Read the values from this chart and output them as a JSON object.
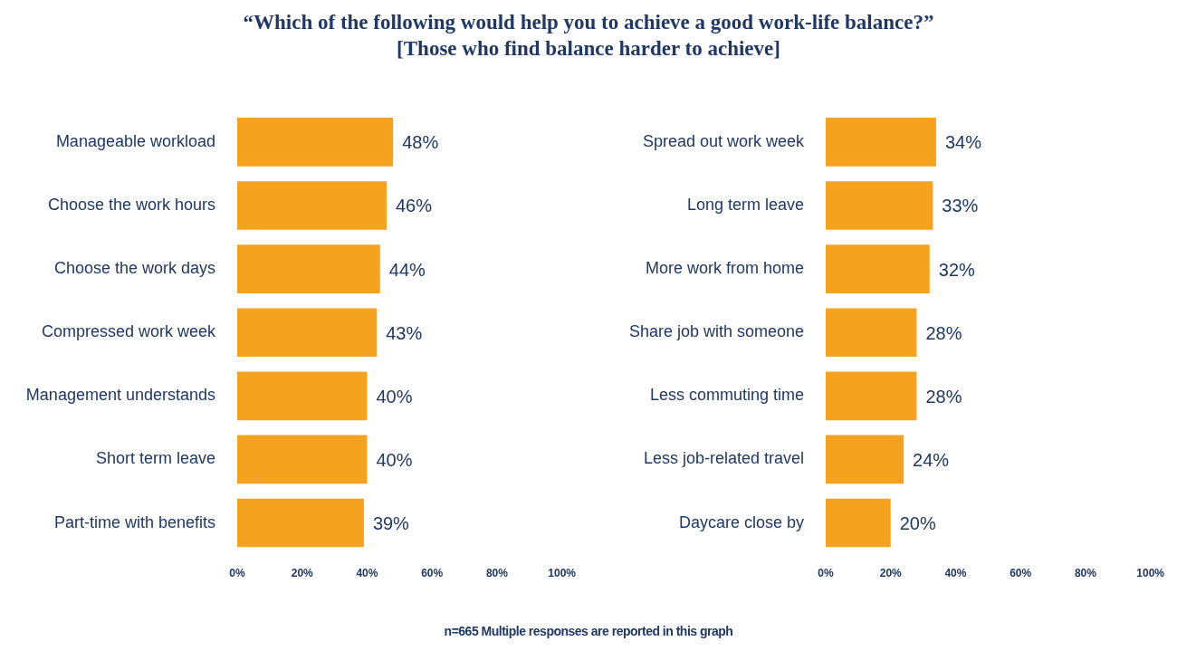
{
  "chart_data": [
    {
      "type": "bar",
      "orientation": "horizontal",
      "title": "“Which of the following would help you to achieve a good work-life balance?”\n[Those who find balance harder to achieve]",
      "annotations": [
        "n=665 Multiple responses are reported in this graph"
      ],
      "categories": [
        "Manageable workload",
        "Choose the work hours",
        "Choose the work days",
        "Compressed work week",
        "Management understands",
        "Short term leave",
        "Part-time with benefits"
      ],
      "values": [
        48,
        46,
        44,
        43,
        40,
        40,
        39
      ],
      "color": "#f5a31e",
      "value_labels": [
        "48%",
        "46%",
        "44%",
        "43%",
        "40%",
        "40%",
        "39%"
      ],
      "xlim": [
        0,
        100
      ],
      "xticks": [
        {
          "value": 0,
          "label": "0%"
        },
        {
          "value": 20,
          "label": "20%"
        },
        {
          "value": 40,
          "label": "40%"
        },
        {
          "value": 60,
          "label": "60%"
        },
        {
          "value": 80,
          "label": "80%"
        },
        {
          "value": 100,
          "label": "100%"
        }
      ],
      "grid": false,
      "legend": false
    },
    {
      "type": "bar",
      "orientation": "horizontal",
      "categories": [
        "Spread out work week",
        "Long term leave",
        "More work from home",
        "Share job with someone",
        "Less commuting time",
        "Less job-related travel",
        "Daycare close by"
      ],
      "values": [
        34,
        33,
        32,
        28,
        28,
        24,
        20
      ],
      "color": "#f5a31e",
      "value_labels": [
        "34%",
        "33%",
        "32%",
        "28%",
        "28%",
        "24%",
        "20%"
      ],
      "xlim": [
        0,
        100
      ],
      "xticks": [
        {
          "value": 0,
          "label": "0%"
        },
        {
          "value": 20,
          "label": "20%"
        },
        {
          "value": 40,
          "label": "40%"
        },
        {
          "value": 60,
          "label": "60%"
        },
        {
          "value": 80,
          "label": "80%"
        },
        {
          "value": 100,
          "label": "100%"
        }
      ],
      "grid": false,
      "legend": false
    }
  ]
}
